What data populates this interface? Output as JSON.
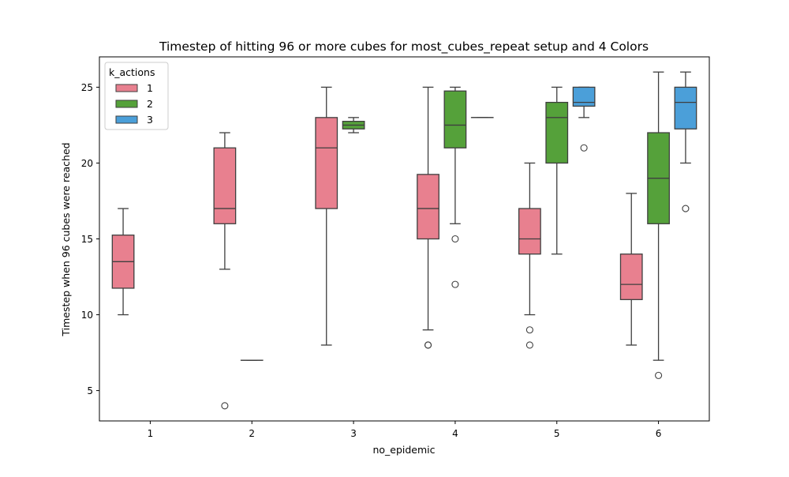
{
  "chart_data": {
    "type": "box",
    "title": "Timestep of hitting 96 or more cubes for most_cubes_repeat setup and 4 Colors",
    "xlabel": "no_epidemic",
    "ylabel": "Timestep when 96 cubes were reached",
    "categories": [
      "1",
      "2",
      "3",
      "4",
      "5",
      "6"
    ],
    "ylim": [
      3,
      27
    ],
    "yticks": [
      5,
      10,
      15,
      20,
      25
    ],
    "grid": false,
    "legend": {
      "title": "k_actions",
      "position": "top-left"
    },
    "series": [
      {
        "name": "1",
        "color": "#e8808f",
        "boxes": [
          {
            "category": "1",
            "whislo": 10,
            "q1": 11.75,
            "med": 13.5,
            "q3": 15.25,
            "whishi": 17,
            "fliers": []
          },
          {
            "category": "2",
            "whislo": 13,
            "q1": 16,
            "med": 17,
            "q3": 21,
            "whishi": 22,
            "fliers": [
              4
            ]
          },
          {
            "category": "3",
            "whislo": 8,
            "q1": 17,
            "med": 21,
            "q3": 23,
            "whishi": 25,
            "fliers": []
          },
          {
            "category": "4",
            "whislo": 9,
            "q1": 15,
            "med": 17,
            "q3": 19.25,
            "whishi": 25,
            "fliers": [
              8,
              8
            ]
          },
          {
            "category": "5",
            "whislo": 10,
            "q1": 14,
            "med": 15,
            "q3": 17,
            "whishi": 20,
            "fliers": [
              9,
              8
            ]
          },
          {
            "category": "6",
            "whislo": 8,
            "q1": 11,
            "med": 12,
            "q3": 14,
            "whishi": 18,
            "fliers": []
          }
        ]
      },
      {
        "name": "2",
        "color": "#55a13a",
        "boxes": [
          {
            "category": "2",
            "whislo": 7,
            "q1": 7,
            "med": 7,
            "q3": 7,
            "whishi": 7,
            "fliers": []
          },
          {
            "category": "3",
            "whislo": 22,
            "q1": 22.25,
            "med": 22.5,
            "q3": 22.75,
            "whishi": 23,
            "fliers": []
          },
          {
            "category": "4",
            "whislo": 16,
            "q1": 21,
            "med": 22.5,
            "q3": 24.75,
            "whishi": 25,
            "fliers": [
              15,
              12
            ]
          },
          {
            "category": "5",
            "whislo": 14,
            "q1": 20,
            "med": 23,
            "q3": 24,
            "whishi": 25,
            "fliers": []
          },
          {
            "category": "6",
            "whislo": 7,
            "q1": 16,
            "med": 19,
            "q3": 22,
            "whishi": 26,
            "fliers": [
              6
            ]
          }
        ]
      },
      {
        "name": "3",
        "color": "#4b9fd9",
        "boxes": [
          {
            "category": "4",
            "whislo": 23,
            "q1": 23,
            "med": 23,
            "q3": 23,
            "whishi": 23,
            "fliers": []
          },
          {
            "category": "5",
            "whislo": 23,
            "q1": 23.75,
            "med": 24,
            "q3": 25,
            "whishi": 25,
            "fliers": [
              21
            ]
          },
          {
            "category": "6",
            "whislo": 20,
            "q1": 22.25,
            "med": 24,
            "q3": 25,
            "whishi": 26,
            "fliers": [
              17
            ]
          }
        ]
      }
    ]
  }
}
